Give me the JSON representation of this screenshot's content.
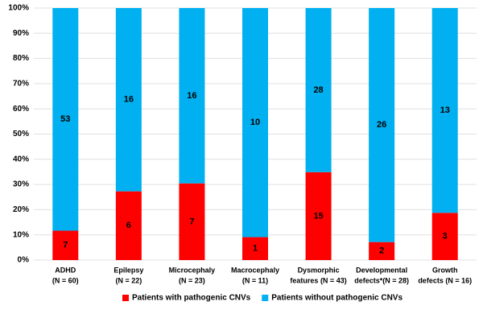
{
  "chart_data": {
    "type": "bar",
    "stacked": "percent",
    "categories": [
      [
        "ADHD",
        "(N = 60)"
      ],
      [
        "Epilepsy",
        "(N = 22)"
      ],
      [
        "Microcephaly",
        "(N = 23)"
      ],
      [
        "Macrocephaly",
        "(N = 11)"
      ],
      [
        "Dysmorphic",
        "features (N = 43)"
      ],
      [
        "Developmental",
        "defects*(N = 28)"
      ],
      [
        "Growth",
        "defects (N = 16)"
      ]
    ],
    "series": [
      {
        "name": "Patients with pathogenic CNVs",
        "color": "#ff0000",
        "values": [
          7,
          6,
          7,
          1,
          15,
          2,
          3
        ]
      },
      {
        "name": "Patients without pathogenic CNVs",
        "color": "#00b0f0",
        "values": [
          53,
          16,
          16,
          10,
          28,
          26,
          13
        ]
      }
    ],
    "ylim": [
      0,
      100
    ],
    "yticks": [
      {
        "value": 0,
        "label": "0%"
      },
      {
        "value": 10,
        "label": "10%"
      },
      {
        "value": 20,
        "label": "20%"
      },
      {
        "value": 30,
        "label": "30%"
      },
      {
        "value": 40,
        "label": "40%"
      },
      {
        "value": 50,
        "label": "50%"
      },
      {
        "value": 60,
        "label": "60%"
      },
      {
        "value": 70,
        "label": "70%"
      },
      {
        "value": 80,
        "label": "80%"
      },
      {
        "value": 90,
        "label": "90%"
      },
      {
        "value": 100,
        "label": "100%"
      }
    ],
    "grid": true,
    "legend": "bottom"
  }
}
